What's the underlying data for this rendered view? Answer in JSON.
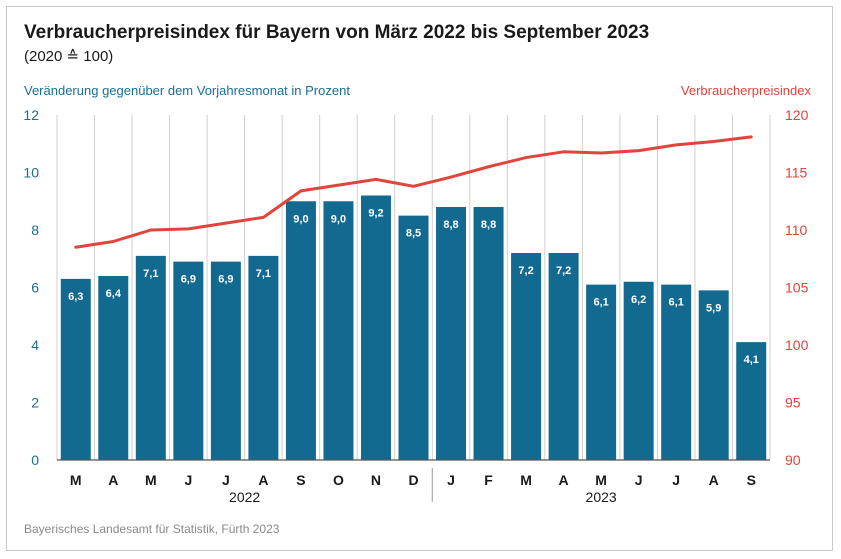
{
  "header": {
    "title": "Verbraucherpreisindex für Bayern von März 2022 bis September 2023",
    "subtitle": "(2020 ≙ 100)"
  },
  "footer": {
    "source": "Bayerisches Landesamt für Statistik, Fürth 2023"
  },
  "colors": {
    "bar": "#136a91",
    "line": "#e2433b",
    "left_axis_text": "#1a6e94",
    "right_axis_text": "#e2433b",
    "grid": "#cfcfcf"
  },
  "chart_data": {
    "type": "bar",
    "categories": [
      "M",
      "A",
      "M",
      "J",
      "J",
      "A",
      "S",
      "O",
      "N",
      "D",
      "J",
      "F",
      "M",
      "A",
      "M",
      "J",
      "J",
      "A",
      "S"
    ],
    "year_labels": [
      {
        "label": "2022",
        "start_index": 0,
        "end_index": 9
      },
      {
        "label": "2023",
        "start_index": 10,
        "end_index": 18
      }
    ],
    "year_divider_after_index": 10,
    "series": [
      {
        "name": "Veränderung gegenüber dem Vorjahresmonat in Prozent",
        "type": "bar",
        "axis": "left",
        "values": [
          6.3,
          6.4,
          7.1,
          6.9,
          6.9,
          7.1,
          9.0,
          9.0,
          9.2,
          8.5,
          8.8,
          8.8,
          7.2,
          7.2,
          6.1,
          6.2,
          6.1,
          5.9,
          4.1
        ],
        "value_labels": [
          "6,3",
          "6,4",
          "7,1",
          "6,9",
          "6,9",
          "7,1",
          "9,0",
          "9,0",
          "9,2",
          "8,5",
          "8,8",
          "8,8",
          "7,2",
          "7,2",
          "6,1",
          "6,2",
          "6,1",
          "5,9",
          "4,1"
        ]
      },
      {
        "name": "Verbraucherpreisindex",
        "type": "line",
        "axis": "right",
        "values": [
          108.5,
          109.0,
          110.0,
          110.1,
          110.6,
          111.1,
          113.4,
          113.9,
          114.4,
          113.8,
          114.6,
          115.5,
          116.3,
          116.8,
          116.7,
          116.9,
          117.4,
          117.7,
          118.1
        ]
      }
    ],
    "y_left": {
      "label": "Veränderung gegenüber dem Vorjahresmonat in Prozent",
      "min": 0,
      "max": 12,
      "ticks": [
        0,
        2,
        4,
        6,
        8,
        10,
        12
      ]
    },
    "y_right": {
      "label": "Verbraucherpreisindex",
      "min": 90,
      "max": 120,
      "ticks": [
        90,
        95,
        100,
        105,
        110,
        115,
        120
      ]
    },
    "grid": true,
    "grid_axis": "x"
  }
}
